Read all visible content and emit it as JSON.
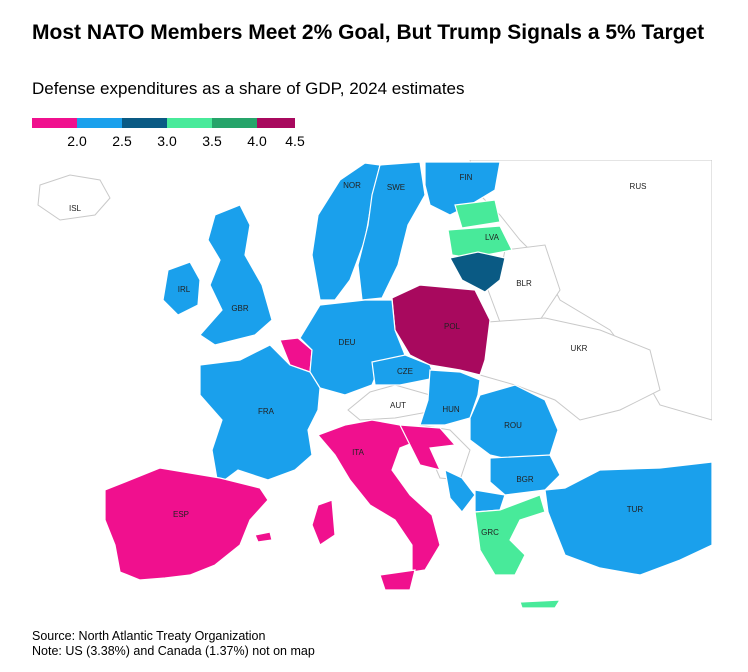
{
  "title": "Most NATO Members Meet 2% Goal, But Trump Signals a 5% Target",
  "subtitle": "Defense expenditures as a share of GDP, 2024 estimates",
  "legend": {
    "colors": [
      "#f0108e",
      "#1aa0ec",
      "#0a5a84",
      "#48ea9a",
      "#26a46a",
      "#a8095e"
    ],
    "ticks": [
      "2.0",
      "2.5",
      "3.0",
      "3.5",
      "4.0",
      "4.5"
    ]
  },
  "countries": {
    "isl": "ISL",
    "irl": "IRL",
    "gbr": "GBR",
    "nor": "NOR",
    "swe": "SWE",
    "fin": "FIN",
    "lva": "LVA",
    "blr": "BLR",
    "rus": "RUS",
    "pol": "POL",
    "deu": "DEU",
    "ukr": "UKR",
    "cze": "CZE",
    "aut": "AUT",
    "fra": "FRA",
    "hun": "HUN",
    "rou": "ROU",
    "ita": "ITA",
    "bgr": "BGR",
    "esp": "ESP",
    "tur": "TUR",
    "grc": "GRC"
  },
  "footer": {
    "source": "Source: North Atlantic Treaty Organization",
    "note": "Note: US (3.38%) and Canada (1.37%) not on map"
  }
}
